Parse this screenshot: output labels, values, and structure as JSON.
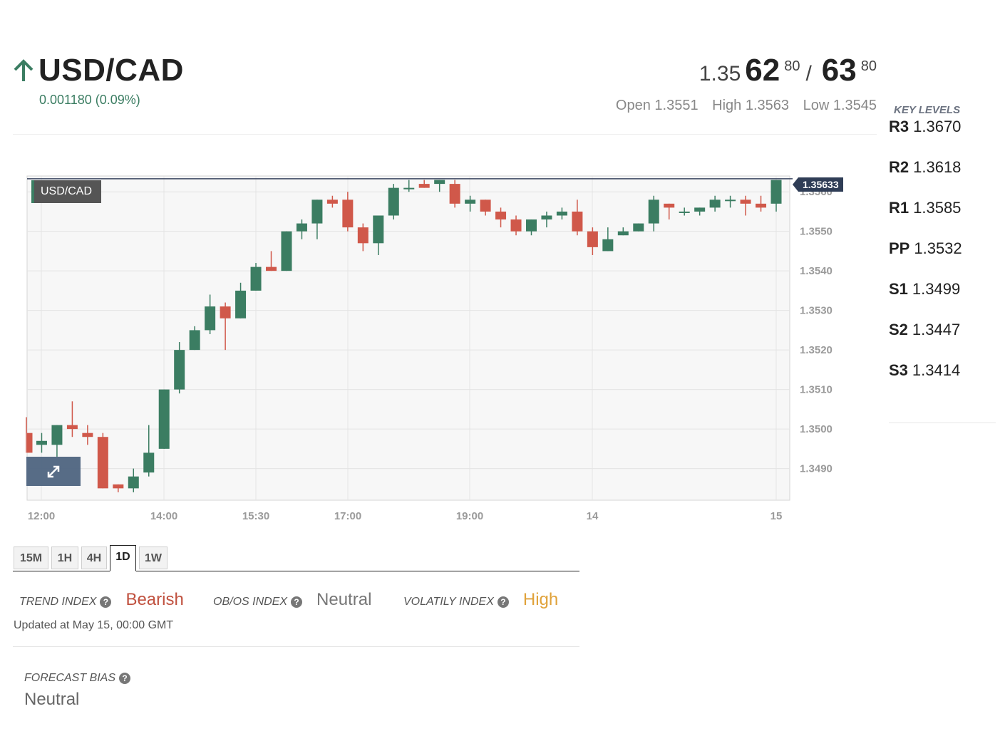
{
  "header": {
    "pair": "USD/CAD",
    "direction_icon": "arrow-up-icon",
    "change": "0.001180 (0.09%)",
    "quote": {
      "bid_prefix": "1.35",
      "bid_main": "62",
      "bid_sup": "80",
      "separator": "/",
      "ask_main": "63",
      "ask_sup": "80"
    },
    "ohl": {
      "open": "Open 1.3551",
      "high": "High 1.3563",
      "low": "Low 1.3545"
    }
  },
  "key_levels": {
    "title": "KEY LEVELS",
    "items": [
      {
        "label": "R3",
        "value": "1.3670"
      },
      {
        "label": "R2",
        "value": "1.3618"
      },
      {
        "label": "R1",
        "value": "1.3585"
      },
      {
        "label": "PP",
        "value": "1.3532"
      },
      {
        "label": "S1",
        "value": "1.3499"
      },
      {
        "label": "S2",
        "value": "1.3447"
      },
      {
        "label": "S3",
        "value": "1.3414"
      }
    ]
  },
  "chart": {
    "tag": "USD/CAD",
    "current_price": "1.35633",
    "expand_icon": "expand-arrows-icon"
  },
  "chart_data": {
    "type": "candlestick",
    "ylim": [
      1.3482,
      1.3564
    ],
    "ytick_labels": [
      "1.3560",
      "1.3550",
      "1.3540",
      "1.3530",
      "1.3520",
      "1.3510",
      "1.3500",
      "1.3490"
    ],
    "xtick_labels": [
      "12:00",
      "14:00",
      "15:30",
      "17:00",
      "19:00",
      "14",
      "15"
    ],
    "current_price": 1.35633,
    "colors": {
      "up": "#3b7d62",
      "down": "#d0584a"
    },
    "candles": [
      {
        "o": 1.3499,
        "h": 1.3503,
        "l": 1.3494,
        "c": 1.3494
      },
      {
        "o": 1.3496,
        "h": 1.3499,
        "l": 1.3494,
        "c": 1.3497
      },
      {
        "o": 1.3496,
        "h": 1.3501,
        "l": 1.3493,
        "c": 1.3501
      },
      {
        "o": 1.3501,
        "h": 1.3507,
        "l": 1.3498,
        "c": 1.35
      },
      {
        "o": 1.3499,
        "h": 1.3501,
        "l": 1.3496,
        "c": 1.3498
      },
      {
        "o": 1.3498,
        "h": 1.3499,
        "l": 1.3485,
        "c": 1.3485
      },
      {
        "o": 1.3486,
        "h": 1.3486,
        "l": 1.3484,
        "c": 1.3485
      },
      {
        "o": 1.3485,
        "h": 1.349,
        "l": 1.3484,
        "c": 1.3488
      },
      {
        "o": 1.3489,
        "h": 1.3501,
        "l": 1.3488,
        "c": 1.3494
      },
      {
        "o": 1.3495,
        "h": 1.351,
        "l": 1.3495,
        "c": 1.351
      },
      {
        "o": 1.351,
        "h": 1.3522,
        "l": 1.3509,
        "c": 1.352
      },
      {
        "o": 1.352,
        "h": 1.3526,
        "l": 1.352,
        "c": 1.3525
      },
      {
        "o": 1.3525,
        "h": 1.3534,
        "l": 1.3524,
        "c": 1.3531
      },
      {
        "o": 1.3531,
        "h": 1.3532,
        "l": 1.352,
        "c": 1.3528
      },
      {
        "o": 1.3528,
        "h": 1.3537,
        "l": 1.3528,
        "c": 1.3535
      },
      {
        "o": 1.3535,
        "h": 1.3542,
        "l": 1.3535,
        "c": 1.3541
      },
      {
        "o": 1.3541,
        "h": 1.3545,
        "l": 1.354,
        "c": 1.354
      },
      {
        "o": 1.354,
        "h": 1.355,
        "l": 1.354,
        "c": 1.355
      },
      {
        "o": 1.355,
        "h": 1.3553,
        "l": 1.3548,
        "c": 1.3552
      },
      {
        "o": 1.3552,
        "h": 1.3558,
        "l": 1.3548,
        "c": 1.3558
      },
      {
        "o": 1.3558,
        "h": 1.3559,
        "l": 1.3556,
        "c": 1.3557
      },
      {
        "o": 1.3558,
        "h": 1.356,
        "l": 1.355,
        "c": 1.3551
      },
      {
        "o": 1.3551,
        "h": 1.3552,
        "l": 1.3545,
        "c": 1.3547
      },
      {
        "o": 1.3547,
        "h": 1.3554,
        "l": 1.3544,
        "c": 1.3554
      },
      {
        "o": 1.3554,
        "h": 1.3562,
        "l": 1.3553,
        "c": 1.3561
      },
      {
        "o": 1.3561,
        "h": 1.3563,
        "l": 1.356,
        "c": 1.3561
      },
      {
        "o": 1.3562,
        "h": 1.3563,
        "l": 1.3561,
        "c": 1.3561
      },
      {
        "o": 1.3562,
        "h": 1.3563,
        "l": 1.356,
        "c": 1.3563
      },
      {
        "o": 1.3562,
        "h": 1.3563,
        "l": 1.3556,
        "c": 1.3557
      },
      {
        "o": 1.3557,
        "h": 1.3559,
        "l": 1.3555,
        "c": 1.3558
      },
      {
        "o": 1.3558,
        "h": 1.3558,
        "l": 1.3554,
        "c": 1.3555
      },
      {
        "o": 1.3555,
        "h": 1.3556,
        "l": 1.3551,
        "c": 1.3553
      },
      {
        "o": 1.3553,
        "h": 1.3554,
        "l": 1.3549,
        "c": 1.355
      },
      {
        "o": 1.355,
        "h": 1.3553,
        "l": 1.3549,
        "c": 1.3553
      },
      {
        "o": 1.3553,
        "h": 1.3555,
        "l": 1.3551,
        "c": 1.3554
      },
      {
        "o": 1.3554,
        "h": 1.3556,
        "l": 1.3553,
        "c": 1.3555
      },
      {
        "o": 1.3555,
        "h": 1.3558,
        "l": 1.3549,
        "c": 1.355
      },
      {
        "o": 1.355,
        "h": 1.3551,
        "l": 1.3544,
        "c": 1.3546
      },
      {
        "o": 1.3545,
        "h": 1.3551,
        "l": 1.3545,
        "c": 1.3548
      },
      {
        "o": 1.3549,
        "h": 1.3551,
        "l": 1.3549,
        "c": 1.355
      },
      {
        "o": 1.355,
        "h": 1.3552,
        "l": 1.355,
        "c": 1.3552
      },
      {
        "o": 1.3552,
        "h": 1.3559,
        "l": 1.355,
        "c": 1.3558
      },
      {
        "o": 1.3557,
        "h": 1.3557,
        "l": 1.3553,
        "c": 1.3556
      },
      {
        "o": 1.3555,
        "h": 1.3556,
        "l": 1.3554,
        "c": 1.3555
      },
      {
        "o": 1.3555,
        "h": 1.3556,
        "l": 1.3554,
        "c": 1.3556
      },
      {
        "o": 1.3556,
        "h": 1.3559,
        "l": 1.3555,
        "c": 1.3558
      },
      {
        "o": 1.3558,
        "h": 1.3559,
        "l": 1.3556,
        "c": 1.3558
      },
      {
        "o": 1.3558,
        "h": 1.3559,
        "l": 1.3554,
        "c": 1.3557
      },
      {
        "o": 1.3557,
        "h": 1.3559,
        "l": 1.3555,
        "c": 1.3556
      },
      {
        "o": 1.3557,
        "h": 1.3563,
        "l": 1.3555,
        "c": 1.3563
      }
    ]
  },
  "timeframes": [
    {
      "label": "15M",
      "active": false
    },
    {
      "label": "1H",
      "active": false
    },
    {
      "label": "4H",
      "active": false
    },
    {
      "label": "1D",
      "active": true
    },
    {
      "label": "1W",
      "active": false
    }
  ],
  "indices": {
    "trend": {
      "label": "TREND INDEX",
      "value": "Bearish",
      "color": "#c0513f"
    },
    "obos": {
      "label": "OB/OS INDEX",
      "value": "Neutral",
      "color": "#777777"
    },
    "volatility": {
      "label": "VOLATILY INDEX",
      "value": "High",
      "color": "#e0a23a"
    },
    "help_icon": "question-circle-icon",
    "updated": "Updated at May 15, 00:00 GMT"
  },
  "forecast": {
    "label": "FORECAST BIAS",
    "value": "Neutral"
  }
}
